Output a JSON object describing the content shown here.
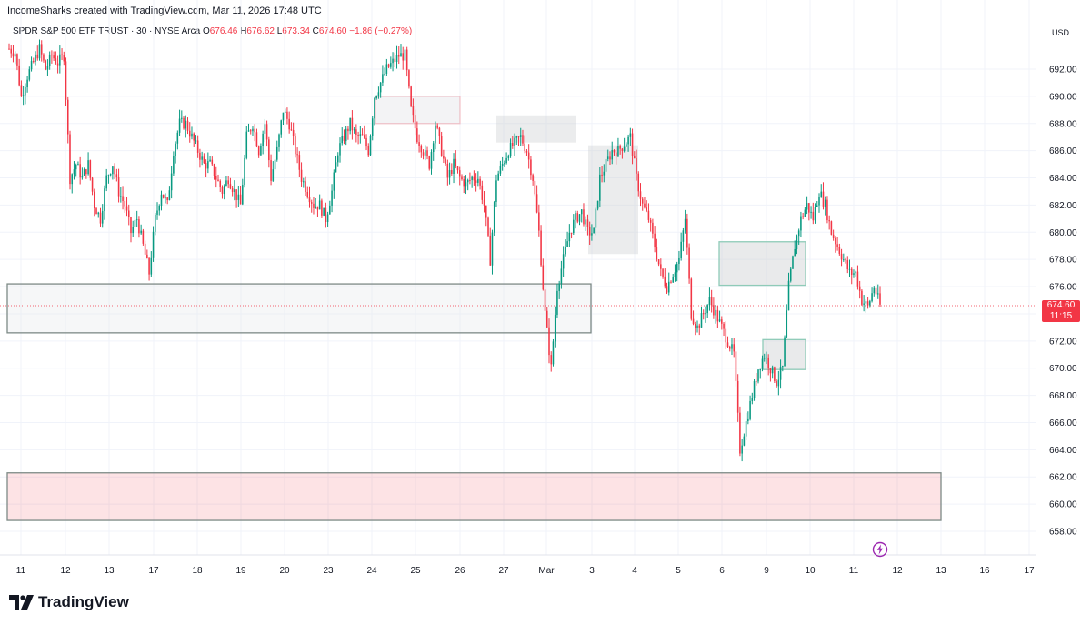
{
  "header": {
    "attribution": "IncomeSharks created with TradingView.com, Mar 11, 2026 17:48 UTC"
  },
  "legend": {
    "symbol": "SPDR S&P 500 ETF TRUST · 30 · NYSE Arca",
    "o_label": "O",
    "o_value": "676.46",
    "h_label": "H",
    "h_value": "676.62",
    "l_label": "L",
    "l_value": "673.34",
    "c_label": "C",
    "c_value": "674.60",
    "change": "−1.86 (−0.27%)"
  },
  "price_axis": {
    "currency": "USD"
  },
  "last_price": {
    "value": "674.60",
    "countdown": "11:15"
  },
  "brand": {
    "name": "TradingView"
  },
  "colors": {
    "up": "#089981",
    "down": "#f23645",
    "grid": "#f0f3fa"
  },
  "icons": {
    "brand": "tradingview-logo-icon",
    "news": "lightning-icon"
  },
  "chart_data": {
    "type": "candlestick",
    "title": "SPDR S&P 500 ETF TRUST · 30 · NYSE Arca",
    "y_ticks": [
      "692.00",
      "690.00",
      "688.00",
      "686.00",
      "684.00",
      "682.00",
      "680.00",
      "678.00",
      "676.00",
      "674.00",
      "672.00",
      "670.00",
      "668.00",
      "666.00",
      "664.00",
      "662.00",
      "660.00",
      "658.00"
    ],
    "ylim": [
      657,
      695
    ],
    "x_ticks": [
      "11",
      "12",
      "13",
      "17",
      "18",
      "19",
      "20",
      "23",
      "24",
      "25",
      "26",
      "27",
      "Mar",
      "3",
      "4",
      "5",
      "6",
      "9",
      "10",
      "11",
      "12",
      "13",
      "16",
      "17"
    ],
    "last_price": 674.6,
    "path": [
      [
        0,
        693.5
      ],
      [
        1,
        693.2
      ],
      [
        2,
        690
      ],
      [
        3,
        691.5
      ],
      [
        4,
        692.5
      ],
      [
        5,
        693.5
      ],
      [
        6,
        692
      ],
      [
        7,
        693
      ],
      [
        8,
        692.5
      ],
      [
        9,
        693
      ],
      [
        10,
        684
      ],
      [
        11,
        685
      ],
      [
        12,
        684
      ],
      [
        13,
        685
      ],
      [
        14,
        682
      ],
      [
        15,
        681
      ],
      [
        16,
        684
      ],
      [
        17,
        685
      ],
      [
        18,
        683
      ],
      [
        19,
        682
      ],
      [
        20,
        680
      ],
      [
        21,
        681
      ],
      [
        22,
        679
      ],
      [
        23,
        677
      ],
      [
        24,
        681
      ],
      [
        25,
        683
      ],
      [
        26,
        682
      ],
      [
        27,
        686
      ],
      [
        28,
        688
      ],
      [
        29,
        688
      ],
      [
        30,
        687
      ],
      [
        31,
        686
      ],
      [
        32,
        685
      ],
      [
        33,
        685
      ],
      [
        34,
        684
      ],
      [
        35,
        683
      ],
      [
        36,
        684
      ],
      [
        37,
        683
      ],
      [
        38,
        682
      ],
      [
        39,
        687
      ],
      [
        40,
        688
      ],
      [
        41,
        686
      ],
      [
        42,
        688
      ],
      [
        43,
        684
      ],
      [
        44,
        686
      ],
      [
        45,
        689
      ],
      [
        46,
        688
      ],
      [
        47,
        686
      ],
      [
        48,
        684
      ],
      [
        49,
        683
      ],
      [
        50,
        682
      ],
      [
        51,
        682
      ],
      [
        52,
        681
      ],
      [
        53,
        683
      ],
      [
        54,
        686
      ],
      [
        55,
        687
      ],
      [
        56,
        688
      ],
      [
        57,
        687
      ],
      [
        58,
        687
      ],
      [
        59,
        686
      ],
      [
        60,
        690
      ],
      [
        61,
        691
      ],
      [
        62,
        692
      ],
      [
        63,
        692.5
      ],
      [
        64,
        693
      ],
      [
        65,
        693
      ],
      [
        66,
        689
      ],
      [
        67,
        687
      ],
      [
        68,
        686
      ],
      [
        69,
        685
      ],
      [
        70,
        688
      ],
      [
        71,
        686
      ],
      [
        72,
        684
      ],
      [
        73,
        685
      ],
      [
        74,
        684
      ],
      [
        75,
        683.5
      ],
      [
        76,
        684
      ],
      [
        77,
        684
      ],
      [
        78,
        682
      ],
      [
        79,
        678
      ],
      [
        80,
        684
      ],
      [
        81,
        685
      ],
      [
        82,
        686
      ],
      [
        83,
        686.5
      ],
      [
        84,
        687
      ],
      [
        85,
        686
      ],
      [
        86,
        684
      ],
      [
        87,
        680
      ],
      [
        88,
        674
      ],
      [
        89,
        670
      ],
      [
        90,
        676
      ],
      [
        91,
        678
      ],
      [
        92,
        680
      ],
      [
        93,
        681
      ],
      [
        94,
        681.5
      ],
      [
        95,
        680
      ],
      [
        96,
        680
      ],
      [
        97,
        684
      ],
      [
        98,
        685
      ],
      [
        99,
        686
      ],
      [
        100,
        686
      ],
      [
        101,
        686.5
      ],
      [
        102,
        687
      ],
      [
        103,
        684
      ],
      [
        104,
        682
      ],
      [
        105,
        681
      ],
      [
        106,
        679
      ],
      [
        107,
        677
      ],
      [
        108,
        676
      ],
      [
        109,
        677
      ],
      [
        110,
        678
      ],
      [
        111,
        681
      ],
      [
        112,
        674
      ],
      [
        113,
        673
      ],
      [
        114,
        674
      ],
      [
        115,
        675
      ],
      [
        116,
        674
      ],
      [
        117,
        673
      ],
      [
        118,
        672
      ],
      [
        119,
        671
      ],
      [
        120,
        664
      ],
      [
        121,
        666
      ],
      [
        122,
        668
      ],
      [
        123,
        670
      ],
      [
        124,
        671
      ],
      [
        125,
        670
      ],
      [
        126,
        669
      ],
      [
        127,
        670
      ],
      [
        128,
        676
      ],
      [
        129,
        679
      ],
      [
        130,
        681
      ],
      [
        131,
        682
      ],
      [
        132,
        681
      ],
      [
        133,
        683
      ],
      [
        134,
        682
      ],
      [
        135,
        680
      ],
      [
        136,
        679
      ],
      [
        137,
        678
      ],
      [
        138,
        677
      ],
      [
        139,
        677
      ],
      [
        140,
        675
      ],
      [
        141,
        674.5
      ],
      [
        142,
        676
      ],
      [
        143,
        674.6
      ]
    ],
    "zones": [
      {
        "type": "demand",
        "from_x": "11",
        "to_x": "3",
        "top": 676.2,
        "bottom": 672.6
      },
      {
        "type": "demand",
        "from_x": "11",
        "to_x": "13",
        "top": 662.3,
        "bottom": 658.8
      },
      {
        "type": "gap",
        "from_x": "24",
        "to_x": "26",
        "top": 690,
        "bottom": 688
      },
      {
        "type": "gap",
        "from_x": "27",
        "to_x": "Mar",
        "top": 688.6,
        "bottom": 686.6
      },
      {
        "type": "gap",
        "from_x": "3",
        "to_x": "4",
        "top": 686.4,
        "bottom": 678.4
      },
      {
        "type": "gap",
        "from_x": "6",
        "to_x": "10",
        "top": 679.3,
        "bottom": 676.1
      },
      {
        "type": "gap",
        "from_x": "9",
        "to_x": "10",
        "top": 672.1,
        "bottom": 669.9
      }
    ]
  }
}
